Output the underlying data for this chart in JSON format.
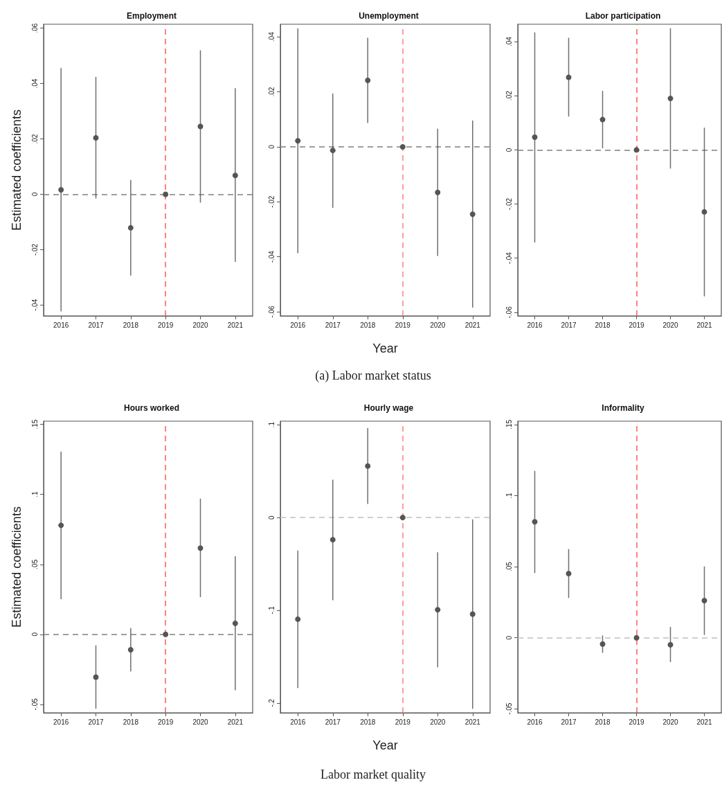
{
  "chart_data": [
    {
      "type": "scatter",
      "title": "Employment",
      "ylabel": "Estimated coefficients",
      "categories": [
        "2016",
        "2017",
        "2018",
        "2019",
        "2020",
        "2021"
      ],
      "values": [
        0.0016,
        0.0204,
        -0.0121,
        0,
        0.0245,
        0.0068
      ],
      "errors": [
        [
          -0.0423,
          0.0456
        ],
        [
          -0.0015,
          0.0424
        ],
        [
          -0.0293,
          0.0052
        ],
        null,
        [
          -0.003,
          0.052
        ],
        [
          -0.0244,
          0.0383
        ]
      ],
      "color": "#555555",
      "marker": "circle",
      "ylim": [
        -0.0439,
        0.0614
      ],
      "yticks": [
        {
          "value": -0.04,
          "label": "-.04"
        },
        {
          "value": -0.02,
          "label": "-.02"
        },
        {
          "value": 0,
          "label": "0"
        },
        {
          "value": 0.02,
          "label": ".02"
        },
        {
          "value": 0.04,
          "label": ".04"
        },
        {
          "value": 0.06,
          "label": ".06"
        }
      ],
      "ref_lines": [
        {
          "axis": "y",
          "value": 0,
          "color": "#7f7f7f",
          "line_style": "dashed"
        },
        {
          "axis": "x",
          "value": "2019",
          "color": "#ff5a5a",
          "line_style": "dashed"
        }
      ],
      "grid": false
    },
    {
      "type": "scatter",
      "title": "Unemployment",
      "xlabel": "Year",
      "categories": [
        "2016",
        "2017",
        "2018",
        "2019",
        "2020",
        "2021"
      ],
      "values": [
        0.0022,
        -0.0013,
        0.0242,
        0,
        -0.0166,
        -0.0245
      ],
      "errors": [
        [
          -0.0387,
          0.0431
        ],
        [
          -0.0222,
          0.0194
        ],
        [
          0.0087,
          0.0397
        ],
        null,
        [
          -0.0397,
          0.0066
        ],
        [
          -0.0585,
          0.0096
        ]
      ],
      "color": "#555555",
      "marker": "circle",
      "ylim": [
        -0.0615,
        0.0446
      ],
      "yticks": [
        {
          "value": -0.06,
          "label": "-.06"
        },
        {
          "value": -0.04,
          "label": "-.04"
        },
        {
          "value": -0.02,
          "label": "-.02"
        },
        {
          "value": 0,
          "label": "0"
        },
        {
          "value": 0.02,
          "label": ".02"
        },
        {
          "value": 0.04,
          "label": ".04"
        }
      ],
      "ref_lines": [
        {
          "axis": "y",
          "value": 0,
          "color": "#7f7f7f",
          "line_style": "dashed"
        },
        {
          "axis": "x",
          "value": "2019",
          "color": "#ff8080",
          "line_style": "dashed"
        }
      ],
      "annotations": [
        "(a) Labor market status"
      ],
      "grid": false
    },
    {
      "type": "scatter",
      "title": "Labor participation",
      "categories": [
        "2016",
        "2017",
        "2018",
        "2019",
        "2020",
        "2021"
      ],
      "values": [
        0.0047,
        0.0268,
        0.0112,
        0,
        0.019,
        -0.0229
      ],
      "errors": [
        [
          -0.0342,
          0.0434
        ],
        [
          0.0123,
          0.0414
        ],
        [
          0.0006,
          0.0218
        ],
        null,
        [
          -0.0069,
          0.0449
        ],
        [
          -0.0541,
          0.0082
        ]
      ],
      "color": "#555555",
      "marker": "circle",
      "ylim": [
        -0.0613,
        0.0464
      ],
      "yticks": [
        {
          "value": -0.06,
          "label": "-.06"
        },
        {
          "value": -0.04,
          "label": "-.04"
        },
        {
          "value": -0.02,
          "label": "-.02"
        },
        {
          "value": 0,
          "label": "0"
        },
        {
          "value": 0.02,
          "label": ".02"
        },
        {
          "value": 0.04,
          "label": ".04"
        }
      ],
      "ref_lines": [
        {
          "axis": "y",
          "value": 0,
          "color": "#7f7f7f",
          "line_style": "dashed"
        },
        {
          "axis": "x",
          "value": "2019",
          "color": "#ff5a5a",
          "line_style": "dashed"
        }
      ],
      "grid": false
    },
    {
      "type": "scatter",
      "title": "Hours worked",
      "ylabel": "Estimated coefficients",
      "categories": [
        "2016",
        "2017",
        "2018",
        "2019",
        "2020",
        "2021"
      ],
      "values": [
        0.0779,
        -0.0305,
        -0.011,
        0,
        0.0616,
        0.0079
      ],
      "errors": [
        [
          0.0252,
          0.1305
        ],
        [
          -0.0531,
          -0.0078
        ],
        [
          -0.0264,
          0.0045
        ],
        null,
        [
          0.0266,
          0.097
        ],
        [
          -0.0399,
          0.0558
        ]
      ],
      "color": "#555555",
      "marker": "circle",
      "ylim": [
        -0.056,
        0.1523
      ],
      "yticks": [
        {
          "value": -0.05,
          "label": "-.05"
        },
        {
          "value": 0,
          "label": "0"
        },
        {
          "value": 0.05,
          "label": ".05"
        },
        {
          "value": 0.1,
          "label": ".1"
        },
        {
          "value": 0.15,
          "label": ".15"
        }
      ],
      "ref_lines": [
        {
          "axis": "y",
          "value": 0,
          "color": "#7f7f7f",
          "line_style": "dashed"
        },
        {
          "axis": "x",
          "value": "2019",
          "color": "#ff5a5a",
          "line_style": "dashed"
        }
      ],
      "grid": false
    },
    {
      "type": "scatter",
      "title": "Hourly wage",
      "xlabel": "Year",
      "categories": [
        "2016",
        "2017",
        "2018",
        "2019",
        "2020",
        "2021"
      ],
      "values": [
        -0.1096,
        -0.0239,
        0.0555,
        0,
        -0.0994,
        -0.1041
      ],
      "errors": [
        [
          -0.1838,
          -0.0356
        ],
        [
          -0.0892,
          0.0408
        ],
        [
          0.0147,
          0.0964
        ],
        null,
        [
          -0.1614,
          -0.0374
        ],
        [
          -0.2062,
          -0.002
        ]
      ],
      "color": "#555555",
      "marker": "circle",
      "ylim": [
        -0.2105,
        0.1039
      ],
      "yticks": [
        {
          "value": -0.2,
          "label": "-.2"
        },
        {
          "value": -0.1,
          "label": "-.1"
        },
        {
          "value": 0,
          "label": "0"
        },
        {
          "value": 0.1,
          "label": ".1"
        }
      ],
      "ref_lines": [
        {
          "axis": "y",
          "value": 0,
          "color": "#c0c0c0",
          "line_style": "dashed"
        },
        {
          "axis": "x",
          "value": "2019",
          "color": "#ff8080",
          "line_style": "dashed"
        }
      ],
      "annotations": [
        "Labor market quality"
      ],
      "grid": false
    },
    {
      "type": "scatter",
      "title": "Informality",
      "categories": [
        "2016",
        "2017",
        "2018",
        "2019",
        "2020",
        "2021"
      ],
      "values": [
        0.0816,
        0.0452,
        -0.0044,
        0,
        -0.0049,
        0.0262
      ],
      "errors": [
        [
          0.0455,
          0.1174
        ],
        [
          0.028,
          0.0624
        ],
        [
          -0.0106,
          0.0016
        ],
        null,
        [
          -0.0171,
          0.0076
        ],
        [
          0.002,
          0.0502
        ]
      ],
      "color": "#555555",
      "marker": "circle",
      "ylim": [
        -0.0528,
        0.1524
      ],
      "yticks": [
        {
          "value": -0.05,
          "label": "-.05"
        },
        {
          "value": 0,
          "label": "0"
        },
        {
          "value": 0.05,
          "label": ".05"
        },
        {
          "value": 0.1,
          "label": ".1"
        },
        {
          "value": 0.15,
          "label": ".15"
        }
      ],
      "ref_lines": [
        {
          "axis": "y",
          "value": 0,
          "color": "#c0c0c0",
          "line_style": "dashed"
        },
        {
          "axis": "x",
          "value": "2019",
          "color": "#ff5a5a",
          "line_style": "dashed"
        }
      ],
      "grid": false
    }
  ]
}
